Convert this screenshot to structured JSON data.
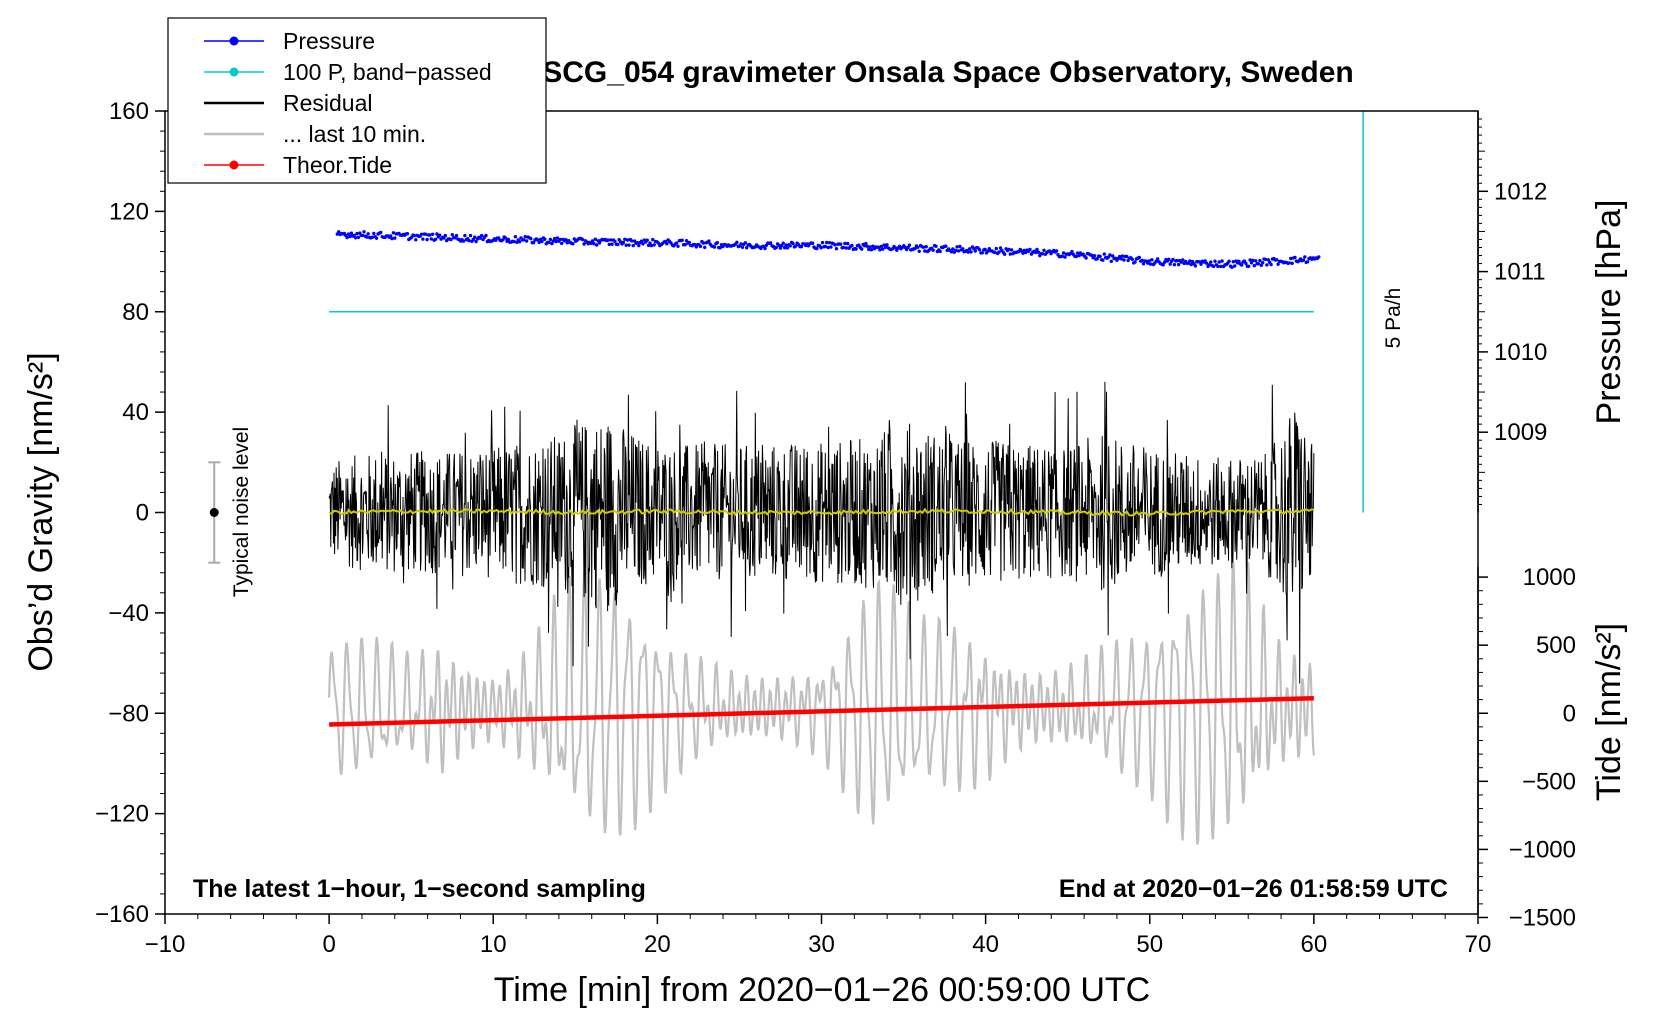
{
  "chart_data": {
    "type": "line",
    "title": "SCG_054 gravimeter Onsala Space Observatory, Sweden",
    "xlabel": "Time [min] from 2020−01−26 00:59:00 UTC",
    "ylabel": "Obs’d Gravity [nm/s²]",
    "xlim": [
      -10,
      70
    ],
    "ylim": [
      -160,
      160
    ],
    "x_ticks": [
      -10,
      0,
      10,
      20,
      30,
      40,
      50,
      60,
      70
    ],
    "x_tick_labels": [
      "−10",
      "0",
      "10",
      "20",
      "30",
      "40",
      "50",
      "60",
      "70"
    ],
    "y_ticks": [
      -160,
      -120,
      -80,
      -40,
      0,
      40,
      80,
      120,
      160
    ],
    "y_tick_labels": [
      "−160",
      "−120",
      "−80",
      "−40",
      "0",
      "40",
      "80",
      "120",
      "160"
    ],
    "pressure_axis": {
      "label": "Pressure [hPa]",
      "ticks": [
        1009,
        1010,
        1011,
        1012
      ],
      "tick_labels": [
        "1009",
        "1010",
        "1011",
        "1012"
      ],
      "gravity_at_1009": 32,
      "gravity_per_hpa": 32
    },
    "tide_axis": {
      "label": "Tide [nm/s²]",
      "ticks": [
        1000,
        500,
        0,
        -500,
        -1000,
        -1500
      ],
      "tick_labels": [
        "1000",
        "500",
        "0",
        "−500",
        "−1000",
        "−1500"
      ],
      "gravity_at_0": -80,
      "gravity_per_unit": 0.05426
    },
    "legend": {
      "position": "top-left",
      "entries": [
        {
          "label": "Pressure",
          "color": "#0000ff",
          "marker": "dot"
        },
        {
          "label": "100 P, band−passed",
          "color": "#00cccc",
          "marker": "dot"
        },
        {
          "label": "Residual",
          "color": "#000000",
          "marker": "line"
        },
        {
          "label": "... last 10 min.",
          "color": "#c0c0c0",
          "marker": "line"
        },
        {
          "label": "Theor.Tide",
          "color": "#ff0000",
          "marker": "dot"
        }
      ]
    },
    "annotations": {
      "left_bottom": "The latest 1−hour, 1−second sampling",
      "right_bottom": "End at 2020−01−26 01:58:59 UTC",
      "noise": "Typical noise level",
      "rate": "5 Pa/h"
    },
    "noise_bar": {
      "x": -7,
      "center": 0,
      "half_range": 20
    },
    "rate_bar": {
      "x": 63,
      "y_top": 160,
      "y_bottom": 0
    },
    "series": [
      {
        "name": "Pressure",
        "color": "#0000ff",
        "x": [
          0.5,
          5,
          10,
          15,
          20,
          25,
          30,
          35,
          40,
          45,
          50,
          55,
          60
        ],
        "values": [
          111,
          110,
          109,
          108,
          107.5,
          106.5,
          106.5,
          105.5,
          104.5,
          103,
          100,
          99,
          101
        ]
      },
      {
        "name": "100 P, band−passed",
        "color": "#00cccc",
        "x": [
          0,
          60
        ],
        "values": [
          80,
          80
        ]
      },
      {
        "name": "Residual",
        "color": "#000000",
        "x": [
          0,
          60
        ],
        "values": [
          0,
          0
        ],
        "amplitude_envelope": {
          "x": [
            0,
            3,
            6,
            10,
            13,
            14,
            16,
            17,
            19,
            21,
            25,
            30,
            33,
            35,
            38,
            41,
            45,
            47,
            50,
            54,
            57,
            59,
            60
          ],
          "peak": [
            38,
            45,
            45,
            48,
            55,
            58,
            70,
            72,
            55,
            50,
            50,
            52,
            55,
            68,
            55,
            52,
            48,
            58,
            48,
            40,
            42,
            82,
            45
          ]
        }
      },
      {
        "name": "... last 10 min.",
        "color": "#c0c0c0",
        "x": [
          0,
          60
        ],
        "values": [
          -78,
          -78
        ],
        "amplitude_envelope": {
          "x": [
            0,
            5,
            7,
            10,
            14,
            17,
            21,
            25,
            30,
            33,
            36,
            40,
            43,
            45,
            50,
            54,
            56,
            58,
            60
          ],
          "peak": [
            30,
            35,
            65,
            40,
            70,
            60,
            40,
            40,
            35,
            62,
            40,
            60,
            45,
            45,
            40,
            70,
            92,
            65,
            60
          ]
        }
      },
      {
        "name": "Theor.Tide",
        "color": "#ff0000",
        "x": [
          0,
          60
        ],
        "values": [
          -84.5,
          -74
        ]
      },
      {
        "name": "Residual smoothed",
        "color": "#cccc00",
        "x": [
          0,
          5,
          10,
          15,
          20,
          25,
          30,
          35,
          40,
          45,
          50,
          55,
          60
        ],
        "values": [
          0,
          0.5,
          0.5,
          0,
          0.5,
          0,
          0,
          0.5,
          0.5,
          0,
          -0.5,
          0.5,
          0.5
        ]
      }
    ]
  }
}
